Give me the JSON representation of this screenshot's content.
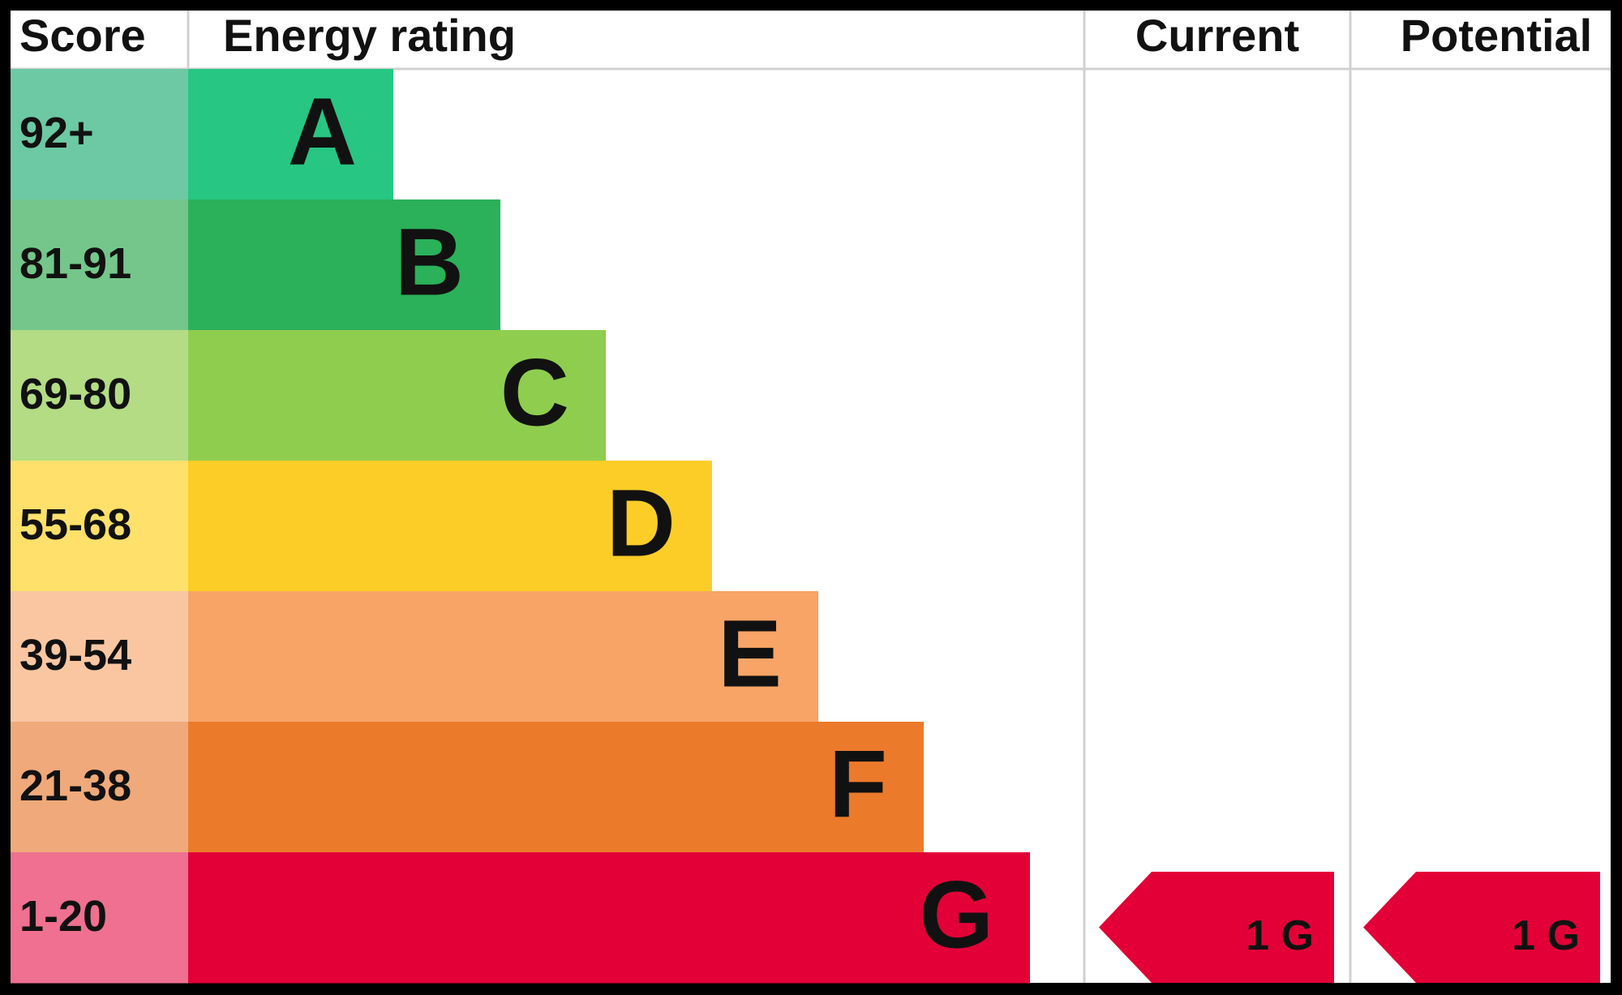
{
  "header": {
    "score": "Score",
    "rating": "Energy rating",
    "current": "Current",
    "potential": "Potential"
  },
  "rows": [
    {
      "score": "92+",
      "band": "A"
    },
    {
      "score": "81-91",
      "band": "B"
    },
    {
      "score": "69-80",
      "band": "C"
    },
    {
      "score": "55-68",
      "band": "D"
    },
    {
      "score": "39-54",
      "band": "E"
    },
    {
      "score": "21-38",
      "band": "F"
    },
    {
      "score": "1-20",
      "band": "G"
    }
  ],
  "current": {
    "label": "1 G"
  },
  "potential": {
    "label": "1 G"
  }
}
